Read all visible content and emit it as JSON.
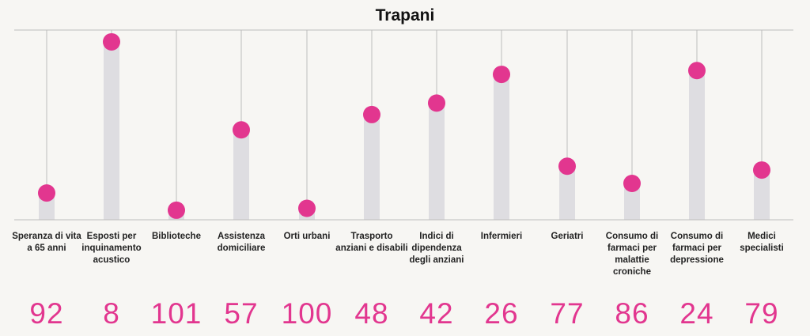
{
  "chart_data": {
    "type": "bar",
    "title": "Trapani",
    "categories": [
      "Speranza di vita a 65 anni",
      "Esposti per inquinamento acustico",
      "Biblioteche",
      "Assistenza domiciliare",
      "Orti urbani",
      "Trasporto anziani e disabili",
      "Indici di dipendenza degli anziani",
      "Infermieri",
      "Geriatri",
      "Consumo di farmaci per malattie croniche",
      "Consumo di farmaci per depressione",
      "Medici specialisti"
    ],
    "ranks": [
      "92",
      "8",
      "101",
      "57",
      "100",
      "48",
      "42",
      "26",
      "77",
      "86",
      "24",
      "79"
    ],
    "values": [
      0.14,
      0.93,
      0.05,
      0.47,
      0.06,
      0.55,
      0.61,
      0.76,
      0.28,
      0.19,
      0.78,
      0.26
    ],
    "ylim": [
      0,
      1
    ],
    "grid": false,
    "colors": {
      "bar": "#dedde1",
      "marker": "#e2368f",
      "rank_text": "#e2368f",
      "axis": "#bdbdbd",
      "background": "#f7f6f3"
    }
  }
}
